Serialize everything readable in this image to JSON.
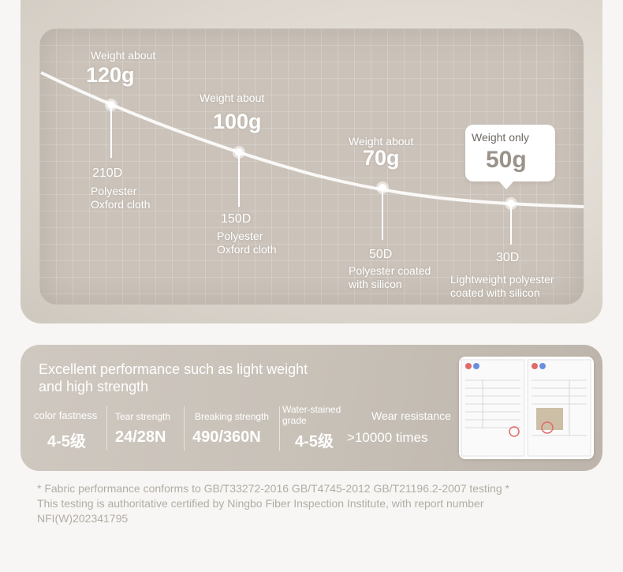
{
  "chart": {
    "points": [
      {
        "weight_prefix": "Weight about",
        "weight": "120g",
        "denier": "210D",
        "material": [
          "Polyester",
          "Oxford cloth"
        ]
      },
      {
        "weight_prefix": "Weight about",
        "weight": "100g",
        "denier": "150D",
        "material": [
          "Polyester",
          "Oxford cloth"
        ]
      },
      {
        "weight_prefix": "Weight about",
        "weight": "70g",
        "denier": "50D",
        "material": [
          "Polyester coated",
          "with silicon"
        ]
      },
      {
        "weight_prefix": "Weight only",
        "weight": "50g",
        "denier": "30D",
        "material": [
          "Lightweight polyester",
          "coated with silicon"
        ]
      }
    ]
  },
  "performance": {
    "title": [
      "Excellent performance such as light weight",
      "and high strength"
    ],
    "metrics": [
      {
        "label": "color fastness",
        "value": "4-5级"
      },
      {
        "label": "Tear strength",
        "value": "24/28N"
      },
      {
        "label": "Breaking strength",
        "value": "490/360N"
      },
      {
        "label": [
          "Water-stained",
          "grade"
        ],
        "value": "4-5级"
      },
      {
        "label": "Wear resistance",
        "value": ">10000 times"
      }
    ]
  },
  "footer": [
    "* Fabric performance conforms to GB/T33272-2016 GB/T4745-2012 GB/T21196.2-2007 testing *",
    "This testing is authoritative certified by Ningbo Fiber Inspection Institute, with report number",
    "NFI(W)202341795"
  ],
  "colors": {
    "panel": "#cbc3ba",
    "accent_text": "#9b928a",
    "footer_text": "#b3aca5"
  }
}
